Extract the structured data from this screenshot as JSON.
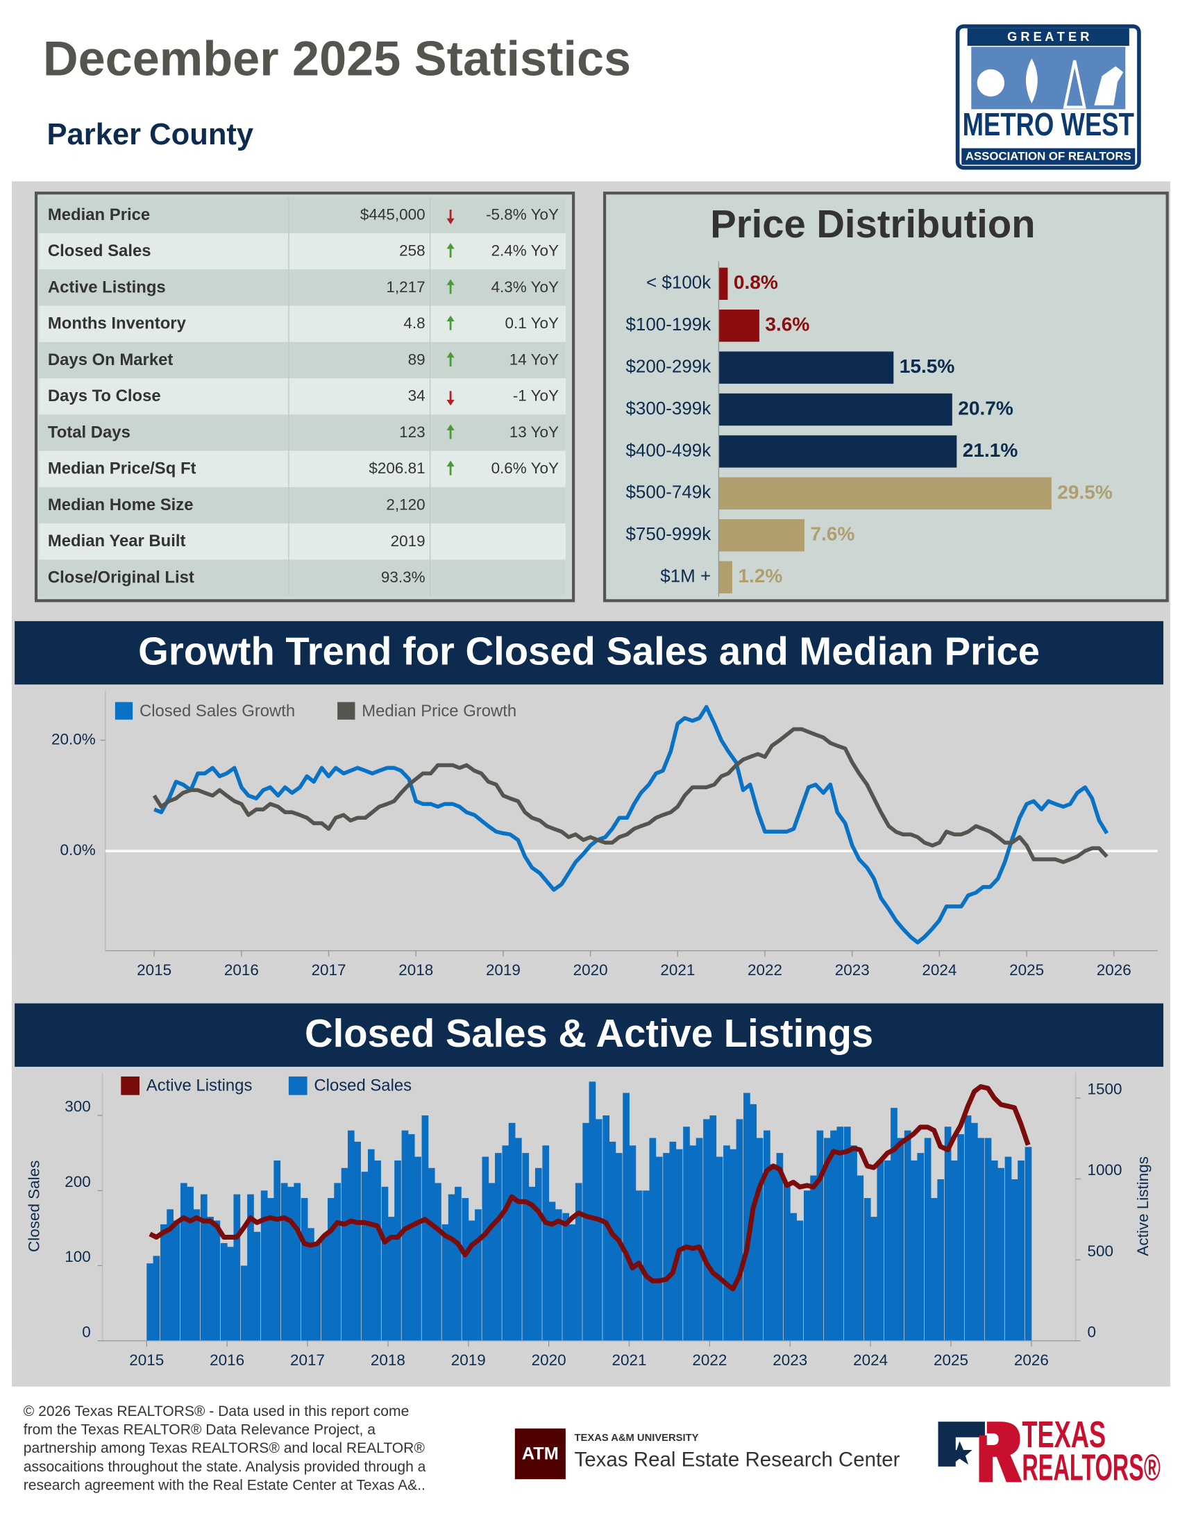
{
  "header": {
    "title": "December 2025 Statistics",
    "subtitle": "Parker County"
  },
  "logo": {
    "top": "G R E A T E R",
    "name": "METRO WEST",
    "bottom": "ASSOCIATION OF REALTORS"
  },
  "stats": {
    "rows": [
      {
        "label": "Median Price",
        "value": "$445,000",
        "change": "-5.8% YoY",
        "direction": "down"
      },
      {
        "label": "Closed Sales",
        "value": "258",
        "change": "2.4% YoY",
        "direction": "up"
      },
      {
        "label": "Active Listings",
        "value": "1,217",
        "change": "4.3% YoY",
        "direction": "up"
      },
      {
        "label": "Months Inventory",
        "value": "4.8",
        "change": "0.1 YoY",
        "direction": "up"
      },
      {
        "label": "Days On Market",
        "value": "89",
        "change": "14 YoY",
        "direction": "up"
      },
      {
        "label": "Days To Close",
        "value": "34",
        "change": "-1 YoY",
        "direction": "down"
      },
      {
        "label": "Total Days",
        "value": "123",
        "change": "13 YoY",
        "direction": "up"
      },
      {
        "label": "Median Price/Sq Ft",
        "value": "$206.81",
        "change": "0.6% YoY",
        "direction": "up"
      },
      {
        "label": "Median Home Size",
        "value": "2,120"
      },
      {
        "label": "Median Year Built",
        "value": "2019"
      },
      {
        "label": "Close/Original List",
        "value": "93.3%"
      }
    ]
  },
  "chart_data": [
    {
      "type": "hbar",
      "title": "Price Distribution",
      "categories": [
        "< $100k",
        "$100-199k",
        "$200-299k",
        "$300-399k",
        "$400-499k",
        "$500-749k",
        "$750-999k",
        "$1M +"
      ],
      "values": [
        0.8,
        3.6,
        15.5,
        20.7,
        21.1,
        29.5,
        7.6,
        1.2
      ],
      "value_labels": [
        "0.8%",
        "3.6%",
        "15.5%",
        "20.7%",
        "21.1%",
        "29.5%",
        "7.6%",
        "1.2%"
      ],
      "colors": [
        "#8b0d0d",
        "#8b0d0d",
        "#0c2b4e",
        "#0c2b4e",
        "#0c2b4e",
        "#b09e6e",
        "#b09e6e",
        "#b09e6e"
      ],
      "xlim": [
        0,
        37
      ]
    },
    {
      "type": "line",
      "title": "Growth Trend for Closed Sales and Median Price",
      "x": [
        2015,
        2015.08,
        2015.17,
        2015.25,
        2015.33,
        2015.42,
        2015.5,
        2015.58,
        2015.67,
        2015.75,
        2015.83,
        2015.92,
        2016,
        2016.08,
        2016.17,
        2016.25,
        2016.33,
        2016.42,
        2016.5,
        2016.58,
        2016.67,
        2016.75,
        2016.83,
        2016.92,
        2017,
        2017.08,
        2017.17,
        2017.25,
        2017.33,
        2017.42,
        2017.5,
        2017.58,
        2017.67,
        2017.75,
        2017.83,
        2017.92,
        2018,
        2018.08,
        2018.17,
        2018.25,
        2018.33,
        2018.42,
        2018.5,
        2018.58,
        2018.67,
        2018.75,
        2018.83,
        2018.92,
        2019,
        2019.08,
        2019.17,
        2019.25,
        2019.33,
        2019.42,
        2019.5,
        2019.58,
        2019.67,
        2019.75,
        2019.83,
        2019.92,
        2020,
        2020.08,
        2020.17,
        2020.25,
        2020.33,
        2020.42,
        2020.5,
        2020.58,
        2020.67,
        2020.75,
        2020.83,
        2020.92,
        2021,
        2021.08,
        2021.17,
        2021.25,
        2021.33,
        2021.42,
        2021.5,
        2021.58,
        2021.67,
        2021.75,
        2021.83,
        2021.92,
        2022,
        2022.08,
        2022.17,
        2022.25,
        2022.33,
        2022.42,
        2022.5,
        2022.58,
        2022.67,
        2022.75,
        2022.83,
        2022.92,
        2023,
        2023.08,
        2023.17,
        2023.25,
        2023.33,
        2023.42,
        2023.5,
        2023.58,
        2023.67,
        2023.75,
        2023.83,
        2023.92,
        2024,
        2024.08,
        2024.17,
        2024.25,
        2024.33,
        2024.42,
        2024.5,
        2024.58,
        2024.67,
        2024.75,
        2024.83,
        2024.92,
        2025,
        2025.08,
        2025.17,
        2025.25,
        2025.33,
        2025.42,
        2025.5,
        2025.58,
        2025.67,
        2025.75,
        2025.83,
        2025.92
      ],
      "xlim": [
        2014.44,
        2026.5
      ],
      "xticks": [
        2015,
        2016,
        2017,
        2018,
        2019,
        2020,
        2021,
        2022,
        2023,
        2024,
        2025,
        2026
      ],
      "ylim": [
        -18,
        29
      ],
      "yticks": [
        {
          "value": 0,
          "label": "0.0%"
        },
        {
          "value": 20,
          "label": "20.0%"
        }
      ],
      "series": [
        {
          "name": "Closed Sales Growth",
          "color": "#0a72c4",
          "values": [
            7.5,
            7,
            9.5,
            12.5,
            12,
            11,
            14,
            14,
            15,
            13.5,
            14,
            15,
            11.5,
            10,
            9.5,
            11,
            11.5,
            10,
            11.5,
            10.5,
            11.5,
            13.5,
            12.5,
            15,
            13.5,
            15,
            14,
            14.5,
            15,
            14.5,
            14,
            14.5,
            15,
            15,
            14.5,
            13,
            9,
            8.5,
            8.5,
            8,
            8.5,
            8.5,
            8,
            7,
            6.5,
            5.5,
            4.5,
            3.5,
            3.2,
            3,
            2,
            -1,
            -3,
            -4,
            -5.5,
            -7,
            -6,
            -4,
            -2,
            -0.5,
            1,
            2,
            2.5,
            4,
            6,
            6,
            8.5,
            10.5,
            12,
            14,
            14.5,
            18,
            23,
            24,
            23.5,
            24,
            26,
            23,
            20,
            18,
            16,
            11,
            12,
            7,
            3.5,
            3.5,
            3.5,
            3.5,
            4,
            8,
            11.5,
            12,
            10.5,
            12,
            7,
            5,
            1,
            -1.5,
            -3,
            -5,
            -8.5,
            -10.5,
            -12.5,
            -14,
            -15.5,
            -16.5,
            -15.5,
            -14,
            -12.5,
            -10,
            -10,
            -10,
            -8,
            -7.5,
            -6.5,
            -6.5,
            -5,
            -2,
            2,
            6,
            8.5,
            9,
            7.5,
            9,
            8.5,
            8,
            8.5,
            10.5,
            11.5,
            9.5,
            5.5,
            3.2
          ]
        },
        {
          "name": "Median Price Growth",
          "color": "#555550",
          "values": [
            10,
            8,
            9,
            9.5,
            10.5,
            11,
            11,
            10.5,
            10,
            11,
            10,
            9,
            8.5,
            6.5,
            7.5,
            7.5,
            8.5,
            8,
            7,
            7,
            6.5,
            6,
            5,
            5,
            4,
            6,
            6.5,
            5.5,
            6,
            6,
            7,
            8,
            8.5,
            9,
            10.5,
            12,
            13,
            14,
            14,
            15.5,
            15.5,
            15.5,
            15,
            15.5,
            14.5,
            14,
            12.5,
            12,
            10,
            9.5,
            9,
            7,
            6,
            5.5,
            4.5,
            4,
            3.5,
            2.5,
            3,
            2,
            2.5,
            2,
            1.5,
            1.5,
            2.5,
            3,
            4,
            4.5,
            5,
            6,
            6.5,
            7,
            8,
            10,
            11.5,
            11.5,
            11.5,
            12,
            13.5,
            14,
            15.5,
            16.5,
            17,
            17.5,
            17,
            19,
            20,
            21,
            22,
            22,
            21.5,
            21,
            20.5,
            19.5,
            19,
            18.5,
            16,
            14,
            12,
            9.5,
            7,
            4.5,
            3.5,
            3,
            3,
            2.5,
            1.5,
            1,
            1.5,
            3.5,
            3,
            3,
            3.5,
            4.5,
            4,
            3.5,
            2.5,
            1.5,
            1.5,
            2.5,
            1,
            -1.5,
            -1.5,
            -1.5,
            -1.5,
            -2,
            -1.5,
            -1,
            0,
            0.5,
            0.5,
            -1
          ]
        }
      ]
    },
    {
      "type": "combo",
      "title": "Closed Sales & Active Listings",
      "x": [
        2015,
        2015.08,
        2015.17,
        2015.25,
        2015.33,
        2015.42,
        2015.5,
        2015.58,
        2015.67,
        2015.75,
        2015.83,
        2015.92,
        2016,
        2016.08,
        2016.17,
        2016.25,
        2016.33,
        2016.42,
        2016.5,
        2016.58,
        2016.67,
        2016.75,
        2016.83,
        2016.92,
        2017,
        2017.08,
        2017.17,
        2017.25,
        2017.33,
        2017.42,
        2017.5,
        2017.58,
        2017.67,
        2017.75,
        2017.83,
        2017.92,
        2018,
        2018.08,
        2018.17,
        2018.25,
        2018.33,
        2018.42,
        2018.5,
        2018.58,
        2018.67,
        2018.75,
        2018.83,
        2018.92,
        2019,
        2019.08,
        2019.17,
        2019.25,
        2019.33,
        2019.42,
        2019.5,
        2019.58,
        2019.67,
        2019.75,
        2019.83,
        2019.92,
        2020,
        2020.08,
        2020.17,
        2020.25,
        2020.33,
        2020.42,
        2020.5,
        2020.58,
        2020.67,
        2020.75,
        2020.83,
        2020.92,
        2021,
        2021.08,
        2021.17,
        2021.25,
        2021.33,
        2021.42,
        2021.5,
        2021.58,
        2021.67,
        2021.75,
        2021.83,
        2021.92,
        2022,
        2022.08,
        2022.17,
        2022.25,
        2022.33,
        2022.42,
        2022.5,
        2022.58,
        2022.67,
        2022.75,
        2022.83,
        2022.92,
        2023,
        2023.08,
        2023.17,
        2023.25,
        2023.33,
        2023.42,
        2023.5,
        2023.58,
        2023.67,
        2023.75,
        2023.83,
        2023.92,
        2024,
        2024.08,
        2024.17,
        2024.25,
        2024.33,
        2024.42,
        2024.5,
        2024.58,
        2024.67,
        2024.75,
        2024.83,
        2024.92,
        2025,
        2025.08,
        2025.17,
        2025.25,
        2025.33,
        2025.42,
        2025.5,
        2025.58,
        2025.67,
        2025.75,
        2025.83,
        2025.92
      ],
      "xlim": [
        2014.45,
        2026.55
      ],
      "xticks": [
        2015,
        2016,
        2017,
        2018,
        2019,
        2020,
        2021,
        2022,
        2023,
        2024,
        2025,
        2026
      ],
      "ylim": [
        0,
        357
      ],
      "yticks": [
        0,
        100,
        200,
        300
      ],
      "ylabel": "Closed Sales",
      "y2lim": [
        0,
        1657
      ],
      "y2ticks": [
        0,
        500,
        1000,
        1500
      ],
      "y2label": "Active Listings",
      "series": [
        {
          "name": "Active Listings",
          "type": "line",
          "axis": "y2",
          "color": "#7b0c0c",
          "values": [
            660,
            640,
            670,
            690,
            730,
            760,
            740,
            760,
            740,
            740,
            710,
            640,
            640,
            640,
            700,
            760,
            730,
            750,
            760,
            750,
            760,
            740,
            690,
            600,
            590,
            600,
            650,
            680,
            730,
            720,
            740,
            730,
            730,
            720,
            710,
            610,
            640,
            640,
            690,
            710,
            730,
            750,
            720,
            690,
            650,
            630,
            600,
            530,
            590,
            620,
            660,
            710,
            750,
            810,
            890,
            860,
            860,
            840,
            800,
            730,
            720,
            740,
            720,
            760,
            790,
            770,
            760,
            750,
            730,
            660,
            620,
            540,
            450,
            480,
            400,
            370,
            370,
            380,
            420,
            560,
            580,
            570,
            580,
            480,
            420,
            390,
            350,
            320,
            400,
            560,
            820,
            950,
            1050,
            1080,
            1060,
            960,
            980,
            950,
            960,
            950,
            1000,
            1100,
            1170,
            1160,
            1170,
            1190,
            1180,
            1080,
            1070,
            1110,
            1160,
            1180,
            1220,
            1250,
            1280,
            1320,
            1320,
            1300,
            1200,
            1180,
            1260,
            1330,
            1450,
            1540,
            1570,
            1560,
            1500,
            1460,
            1450,
            1440,
            1340,
            1210
          ]
        },
        {
          "name": "Closed Sales",
          "type": "bar",
          "color": "#0a6fc2",
          "values": [
            103,
            113,
            155,
            175,
            160,
            210,
            205,
            175,
            195,
            165,
            160,
            130,
            125,
            195,
            100,
            195,
            145,
            200,
            190,
            240,
            210,
            205,
            210,
            190,
            150,
            130,
            140,
            190,
            210,
            230,
            280,
            265,
            225,
            255,
            240,
            205,
            165,
            240,
            280,
            275,
            245,
            300,
            230,
            210,
            155,
            195,
            205,
            190,
            160,
            175,
            245,
            210,
            250,
            260,
            290,
            270,
            250,
            205,
            230,
            260,
            185,
            175,
            170,
            155,
            210,
            290,
            345,
            295,
            300,
            265,
            250,
            330,
            260,
            200,
            200,
            270,
            245,
            250,
            265,
            255,
            285,
            260,
            270,
            295,
            300,
            245,
            260,
            255,
            295,
            330,
            315,
            270,
            280,
            235,
            250,
            210,
            170,
            160,
            200,
            220,
            280,
            270,
            280,
            285,
            285,
            260,
            220,
            190,
            165,
            240,
            240,
            310,
            270,
            280,
            240,
            250,
            270,
            190,
            215,
            285,
            240,
            275,
            300,
            290,
            270,
            270,
            240,
            230,
            245,
            215,
            240,
            258
          ]
        }
      ]
    }
  ],
  "footer": {
    "text": [
      "© 2026 Texas REALTORS® - Data used in this report come",
      "from the Texas REALTOR® Data Relevance Project, a",
      "partnership among Texas REALTORS® and local REALTOR®",
      "assocaitions throughout the state. Analysis provided through a",
      "research agreement with the Real Estate Center at Texas A&.."
    ],
    "tamu": {
      "mark": "ATM",
      "university": "TEXAS A&M UNIVERSITY",
      "center": "Texas Real Estate Research Center"
    },
    "realtors": {
      "line1": "TEXAS",
      "line2": "REALTORS®"
    }
  }
}
